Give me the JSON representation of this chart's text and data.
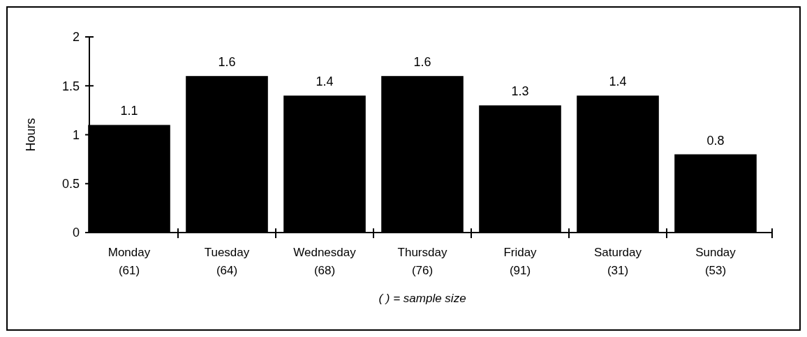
{
  "chart_data": {
    "type": "bar",
    "ylabel": "Hours",
    "categories": [
      "Monday\n(61)",
      "Tuesday\n(64)",
      "Wednesday\n(68)",
      "Thursday\n(76)",
      "Friday\n(91)",
      "Saturday\n(31)",
      "Sunday\n(53)"
    ],
    "values": [
      1.1,
      1.6,
      1.4,
      1.6,
      1.3,
      1.4,
      0.8
    ],
    "color": "#000000",
    "ylim": [
      0,
      2
    ],
    "yticks": [
      0,
      0.5,
      1,
      1.5,
      2
    ],
    "data_labels": true,
    "annotations": [
      "( ) = sample size"
    ]
  }
}
